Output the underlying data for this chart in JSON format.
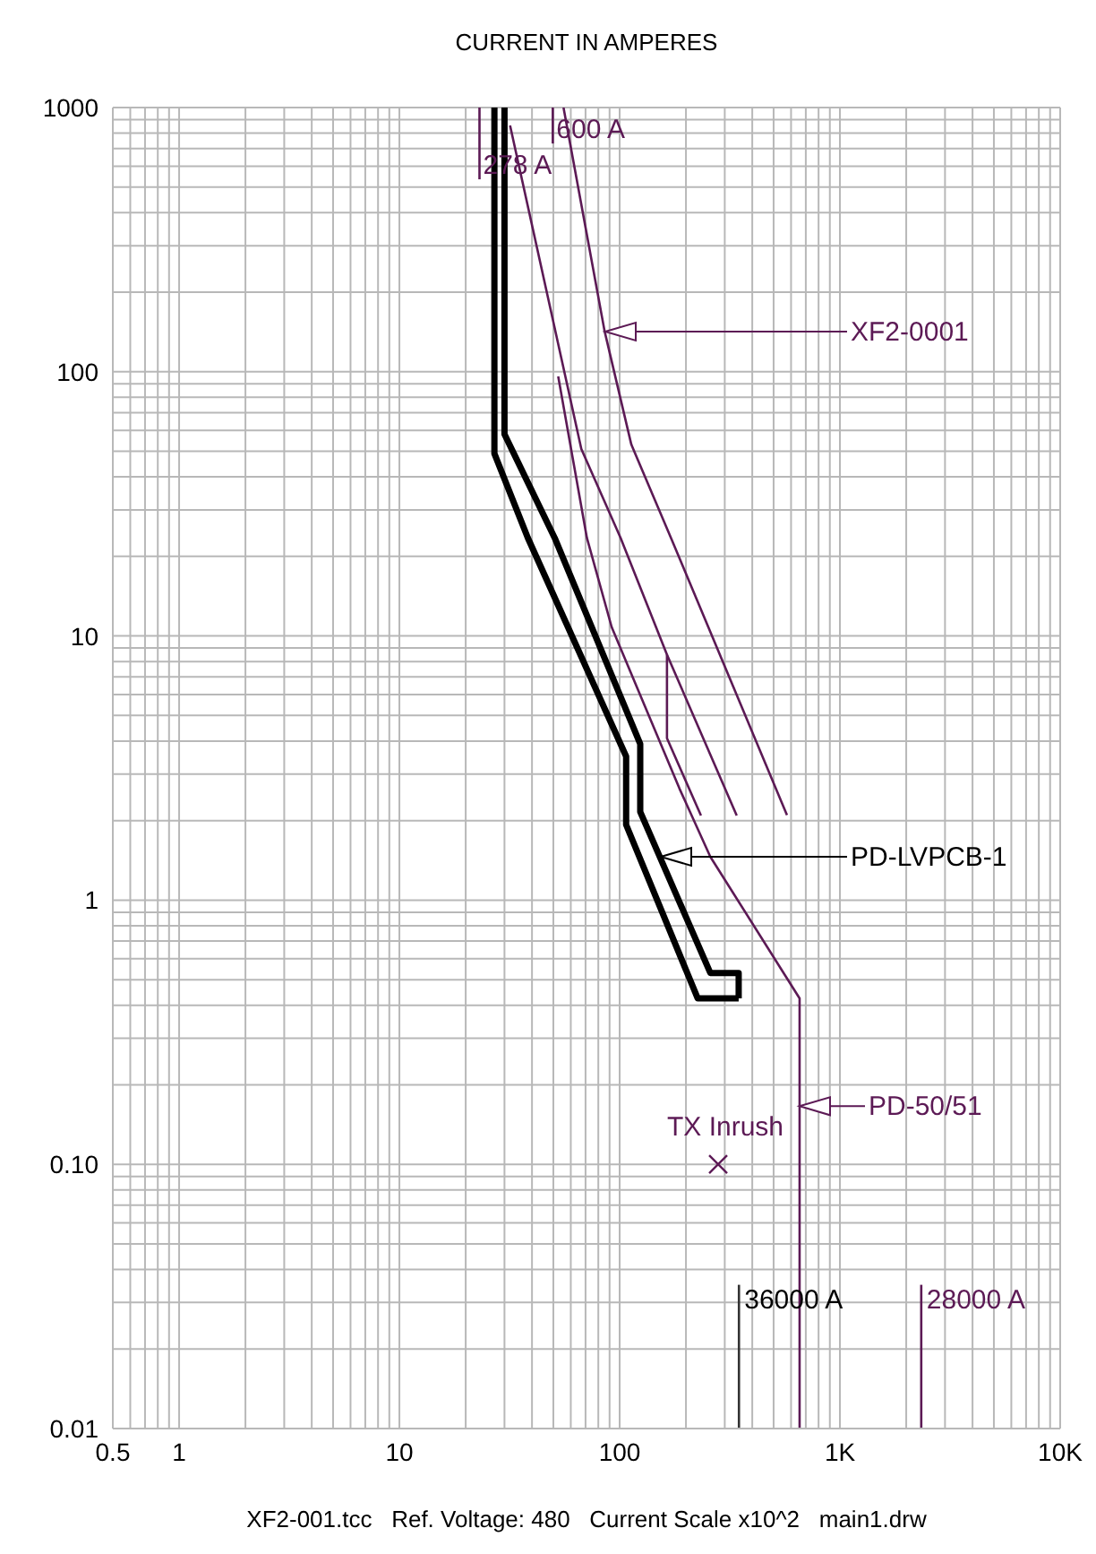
{
  "chart_data": {
    "type": "line",
    "title": "CURRENT IN AMPERES",
    "log": "xy",
    "grid": true,
    "legend": false,
    "marker": "none",
    "xlim": [
      0.5,
      10000
    ],
    "ylim": [
      0.01,
      1000
    ],
    "xticks": [
      0.5,
      {
        "value": 0.6,
        "label": null
      },
      {
        "value": 0.7,
        "label": null
      },
      {
        "value": 0.8,
        "label": null
      },
      {
        "value": 0.9,
        "label": null
      },
      1,
      {
        "value": 2,
        "label": null
      },
      {
        "value": 3,
        "label": null
      },
      {
        "value": 4,
        "label": null
      },
      {
        "value": 5,
        "label": null
      },
      {
        "value": 6,
        "label": null
      },
      {
        "value": 7,
        "label": null
      },
      {
        "value": 8,
        "label": null
      },
      {
        "value": 9,
        "label": null
      },
      10,
      {
        "value": 20,
        "label": null
      },
      {
        "value": 30,
        "label": null
      },
      {
        "value": 40,
        "label": null
      },
      {
        "value": 50,
        "label": null
      },
      {
        "value": 60,
        "label": null
      },
      {
        "value": 70,
        "label": null
      },
      {
        "value": 80,
        "label": null
      },
      {
        "value": 90,
        "label": null
      },
      100,
      {
        "value": 200,
        "label": null
      },
      {
        "value": 300,
        "label": null
      },
      {
        "value": 400,
        "label": null
      },
      {
        "value": 500,
        "label": null
      },
      {
        "value": 600,
        "label": null
      },
      {
        "value": 700,
        "label": null
      },
      {
        "value": 800,
        "label": null
      },
      {
        "value": 900,
        "label": null
      },
      {
        "value": 1000,
        "label": "1K"
      },
      {
        "value": 2000,
        "label": null
      },
      {
        "value": 3000,
        "label": null
      },
      {
        "value": 4000,
        "label": null
      },
      {
        "value": 5000,
        "label": null
      },
      {
        "value": 6000,
        "label": null
      },
      {
        "value": 7000,
        "label": null
      },
      {
        "value": 8000,
        "label": null
      },
      {
        "value": 9000,
        "label": null
      },
      {
        "value": 10000,
        "label": "10K"
      }
    ],
    "yticks": [
      0.01,
      {
        "value": 0.02,
        "label": null
      },
      {
        "value": 0.03,
        "label": null
      },
      {
        "value": 0.04,
        "label": null
      },
      {
        "value": 0.05,
        "label": null
      },
      {
        "value": 0.06,
        "label": null
      },
      {
        "value": 0.07,
        "label": null
      },
      {
        "value": 0.08,
        "label": null
      },
      {
        "value": 0.09,
        "label": null
      },
      {
        "value": 0.1,
        "label": "0.10"
      },
      {
        "value": 0.2,
        "label": null
      },
      {
        "value": 0.3,
        "label": null
      },
      {
        "value": 0.4,
        "label": null
      },
      {
        "value": 0.5,
        "label": null
      },
      {
        "value": 0.6,
        "label": null
      },
      {
        "value": 0.7,
        "label": null
      },
      {
        "value": 0.8,
        "label": null
      },
      {
        "value": 0.9,
        "label": null
      },
      1,
      {
        "value": 2,
        "label": null
      },
      {
        "value": 3,
        "label": null
      },
      {
        "value": 4,
        "label": null
      },
      {
        "value": 5,
        "label": null
      },
      {
        "value": 6,
        "label": null
      },
      {
        "value": 7,
        "label": null
      },
      {
        "value": 8,
        "label": null
      },
      {
        "value": 9,
        "label": null
      },
      10,
      {
        "value": 20,
        "label": null
      },
      {
        "value": 30,
        "label": null
      },
      {
        "value": 40,
        "label": null
      },
      {
        "value": 50,
        "label": null
      },
      {
        "value": 60,
        "label": null
      },
      {
        "value": 70,
        "label": null
      },
      {
        "value": 80,
        "label": null
      },
      {
        "value": 90,
        "label": null
      },
      100,
      {
        "value": 200,
        "label": null
      },
      {
        "value": 300,
        "label": null
      },
      {
        "value": 400,
        "label": null
      },
      {
        "value": 500,
        "label": null
      },
      {
        "value": 600,
        "label": null
      },
      {
        "value": 700,
        "label": null
      },
      {
        "value": 800,
        "label": null
      },
      {
        "value": 900,
        "label": null
      },
      1000
    ],
    "series": [
      {
        "color": "#000000",
        "x": [
          27,
          27,
          38.3,
          107,
          107,
          226,
          347
        ],
        "values": [
          1000,
          49,
          23.5,
          3.5,
          1.93,
          0.425,
          0.425
        ]
      },
      {
        "color": "#000000",
        "x": [
          30,
          30,
          50.7,
          124,
          124,
          258,
          347,
          347
        ],
        "values": [
          1000,
          58,
          23.5,
          3.9,
          2.16,
          0.53,
          0.53,
          0.425
        ]
      },
      {
        "color": "#5c1a55",
        "x": [
          55.6,
          85.5,
          113,
          171,
          575
        ],
        "values": [
          1000,
          142,
          53,
          23.5,
          2.1
        ]
      },
      {
        "color": "#5c1a55",
        "x": [
          31.8,
          67,
          101,
          164,
          340
        ],
        "values": [
          855,
          51,
          23.5,
          8.5,
          2.09
        ]
      },
      {
        "color": "#5c1a55",
        "x": [
          164,
          164,
          234
        ],
        "values": [
          8.5,
          4.1,
          2.09
        ]
      },
      {
        "color": "#5c1a55",
        "x": [
          52.6,
          71,
          92,
          187,
          258,
          656,
          656
        ],
        "values": [
          96,
          23.5,
          10.8,
          2.64,
          1.46,
          0.425,
          0.01
        ]
      },
      {
        "color": "#5c1a55",
        "x": [
          23.1,
          23.1
        ],
        "values": [
          1000,
          535
        ]
      },
      {
        "color": "#5c1a55",
        "x": [
          49.7,
          49.7
        ],
        "values": [
          1000,
          731
        ]
      },
      {
        "color": "#333333",
        "x": [
          348,
          348
        ],
        "values": [
          0.01,
          0.035
        ]
      },
      {
        "color": "#5c1a55",
        "x": [
          2340,
          2340
        ],
        "values": [
          0.01,
          0.035
        ]
      },
      {
        "type": "scatter",
        "name": "TX Inrush",
        "marker": "cross",
        "color": "#5c1a55",
        "x": [
          280
        ],
        "values": [
          0.1
        ]
      }
    ],
    "annotations": [
      "XF2-0001",
      "PD-LVPCB-1",
      {
        "text": "PD-50/51",
        "x": 656,
        "y": 0.166
      },
      {
        "text": "278 A",
        "x": 23.1,
        "y": 535
      },
      {
        "text": "600 A",
        "x": 49.7,
        "y": 731
      },
      {
        "text": "36000 A",
        "x": 348,
        "y": 0.035
      },
      {
        "text": "28000 A",
        "x": 2340,
        "y": 0.035
      },
      "XF2-001.tcc   Ref. Voltage: 480   Current Scale x10^2   main1.drw"
    ]
  }
}
